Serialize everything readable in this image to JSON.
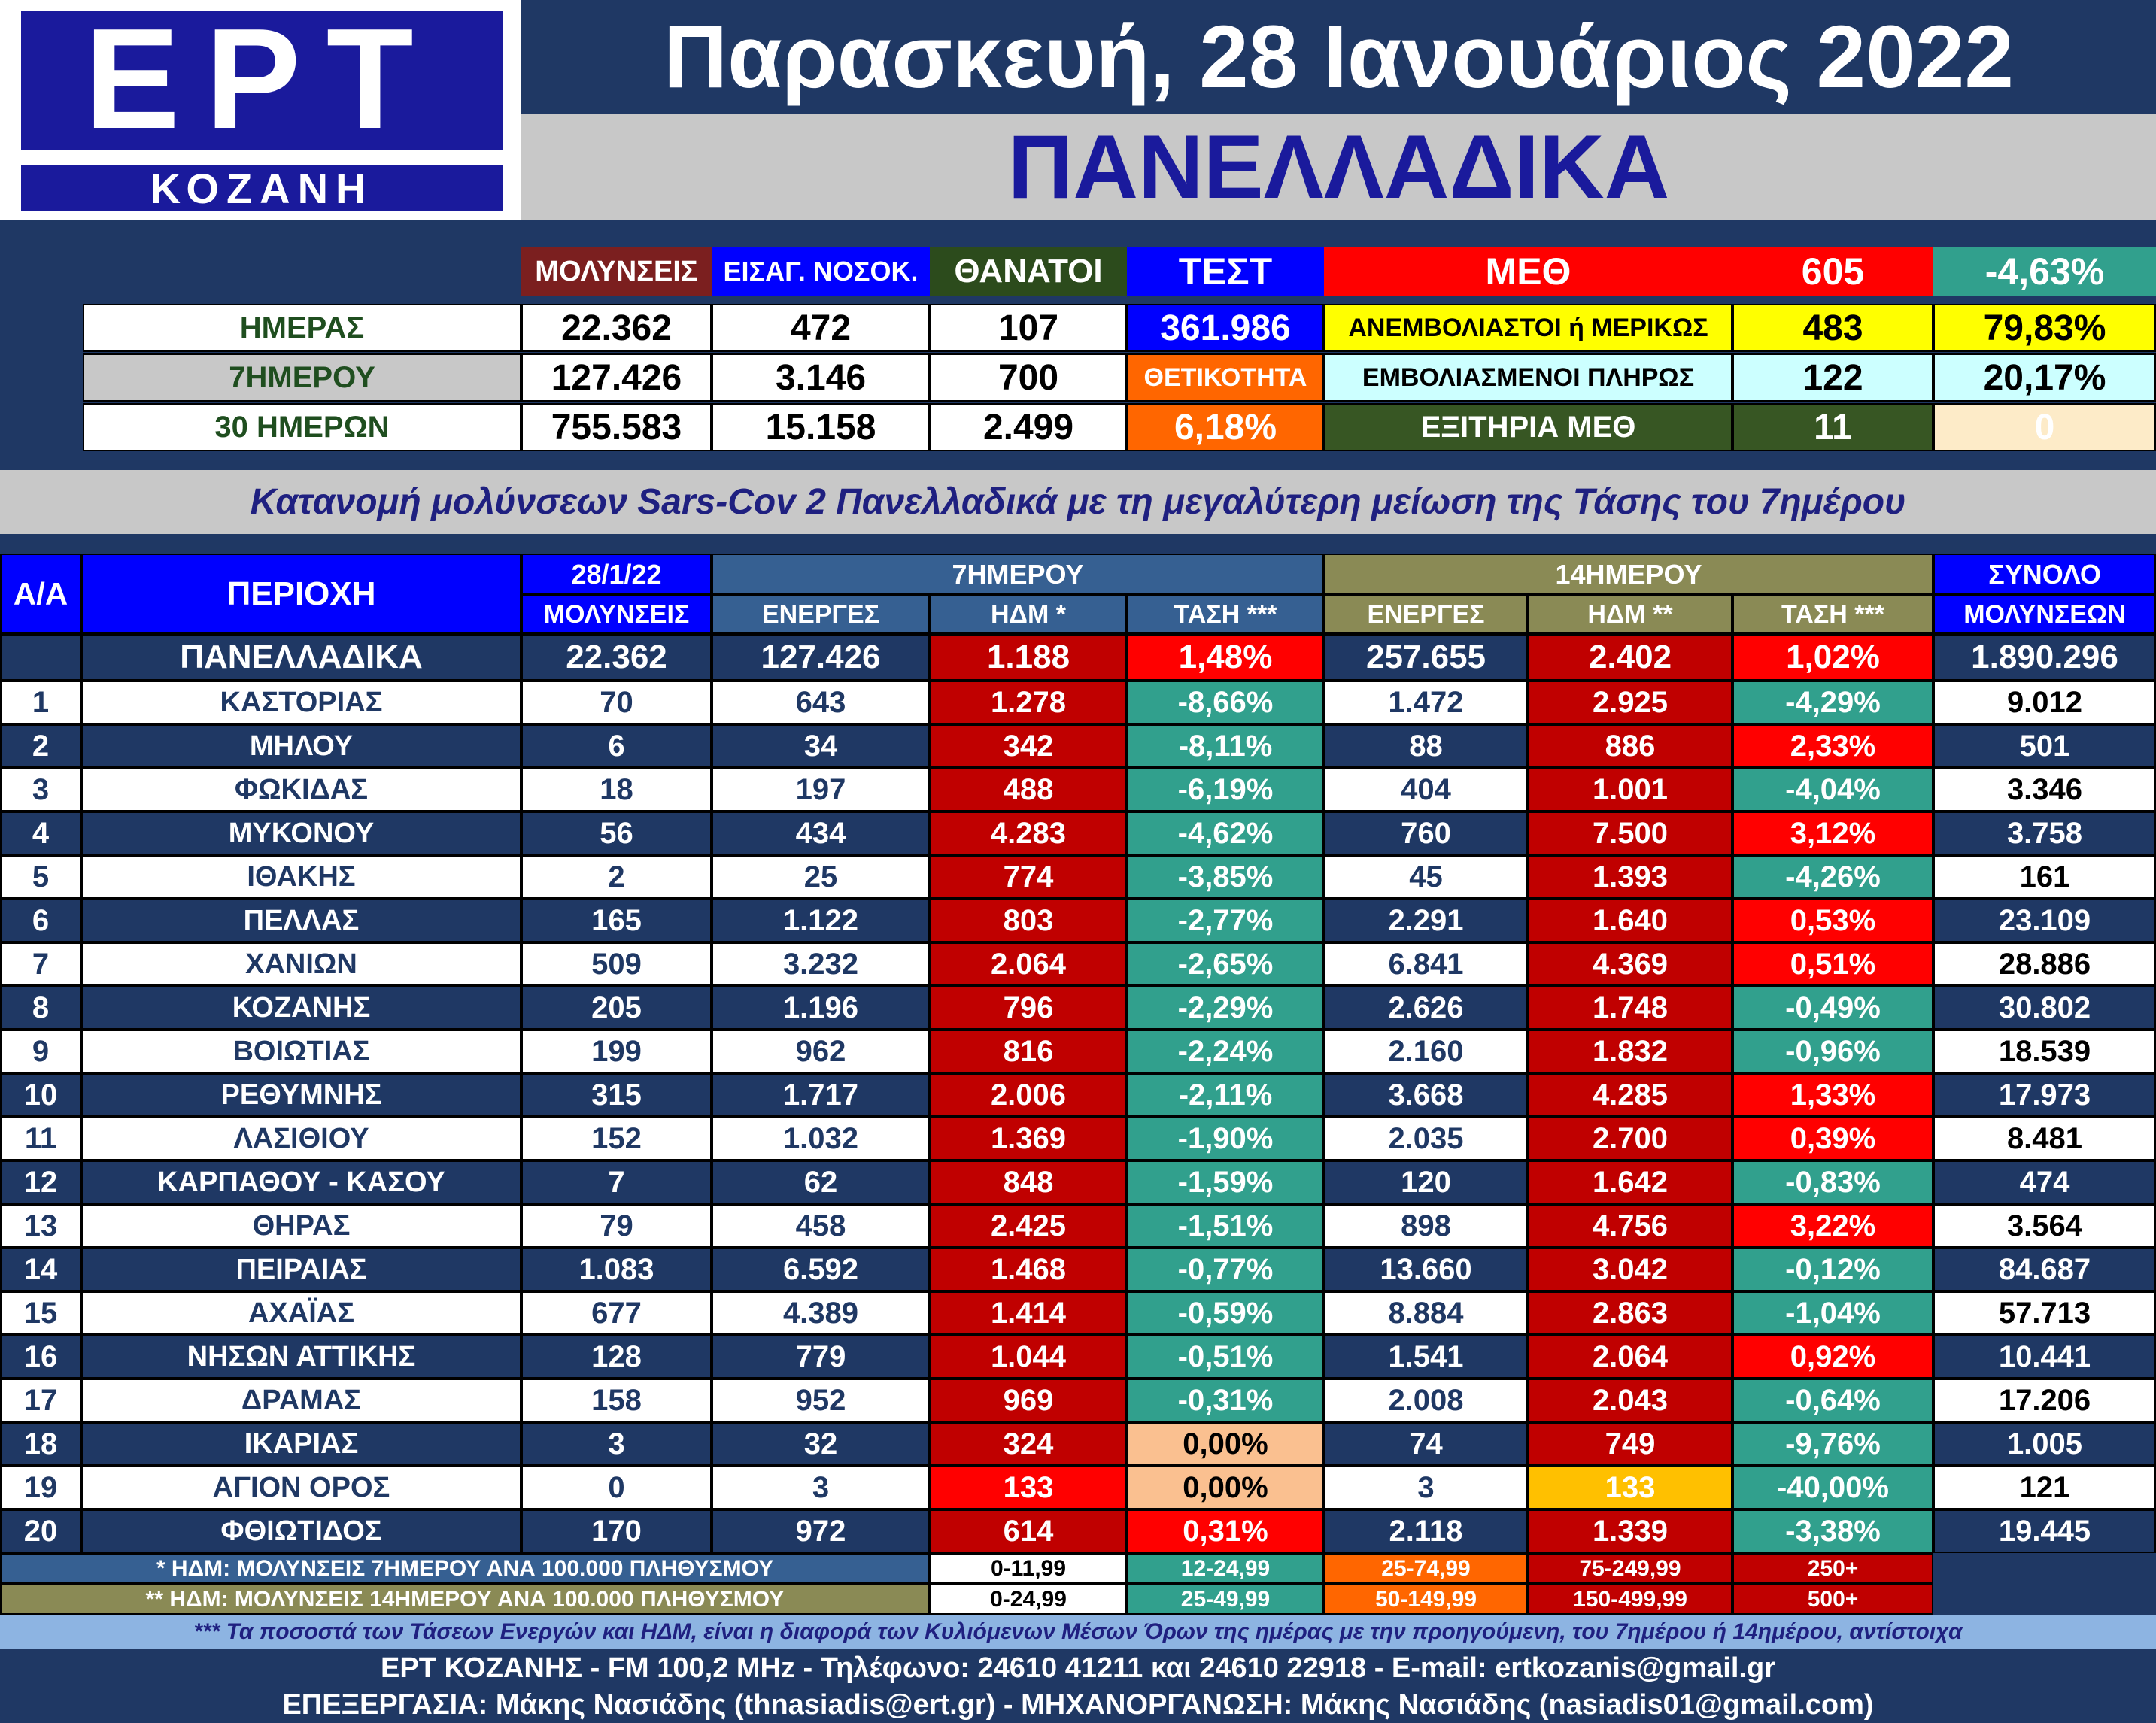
{
  "logo": {
    "main": "ΕΡΤ",
    "sub": "ΚΟΖΑΝΗ"
  },
  "date_title": "Παρασκευή, 28 Ιανουάριος 2022",
  "region_title": "ΠΑΝΕΛΛΑΔΙΚΑ",
  "summary": {
    "headers": {
      "cases": "ΜΟΛΥΝΣΕΙΣ",
      "hospital": "ΕΙΣΑΓ. ΝΟΣΟΚ.",
      "deaths": "ΘΑΝΑΤΟΙ",
      "tests": "ΤΕΣΤ"
    },
    "rows": [
      {
        "label": "ΗΜΕΡΑΣ",
        "cases": "22.362",
        "hospital": "472",
        "deaths": "107"
      },
      {
        "label": "7ΗΜΕΡΟΥ",
        "cases": "127.426",
        "hospital": "3.146",
        "deaths": "700"
      },
      {
        "label": "30 ΗΜΕΡΩΝ",
        "cases": "755.583",
        "hospital": "15.158",
        "deaths": "2.499"
      }
    ],
    "tests_value": "361.986",
    "positivity_label": "ΘΕΤΙΚΟΤΗΤΑ",
    "positivity_value": "6,18%",
    "icu": {
      "label": "ΜΕΘ",
      "total": "605",
      "change": "-4,63%",
      "rows": [
        {
          "label": "ΑΝΕΜΒΟΛΙΑΣΤΟΙ ή ΜΕΡΙΚΩΣ",
          "value": "483",
          "pct": "79,83%"
        },
        {
          "label": "ΕΜΒΟΛΙΑΣΜΕΝΟΙ ΠΛΗΡΩΣ",
          "value": "122",
          "pct": "20,17%"
        },
        {
          "label": "ΕΞΙΤΗΡΙΑ ΜΕΘ",
          "value": "11",
          "pct": "0"
        }
      ]
    }
  },
  "subtitle": "Κατανομή μολύνσεων Sars-Cov 2 Πανελλαδικά με τη μεγαλύτερη μείωση της Τάσης του 7ημέρου",
  "table": {
    "headers": {
      "aa": "Α/Α",
      "area": "ΠΕΡΙΟΧΗ",
      "date": "28/1/22",
      "cases": "ΜΟΛΥΝΣΕΙΣ",
      "group7": "7ΗΜΕΡΟΥ",
      "group14": "14ΗΜΕΡΟΥ",
      "active7": "ΕΝΕΡΓΕΣ",
      "hdm7": "ΗΔΜ *",
      "trend7": "ΤΑΣΗ ***",
      "active14": "ΕΝΕΡΓΕΣ",
      "hdm14": "ΗΔΜ **",
      "trend14": "ΤΑΣΗ ***",
      "total_top": "ΣΥΝΟΛΟ",
      "total_bottom": "ΜΟΛΥΝΣΕΩΝ"
    },
    "national": {
      "area": "ΠΑΝΕΛΛΑΔΙΚΑ",
      "cases": "22.362",
      "active7": "127.426",
      "hdm7": "1.188",
      "trend7": "1,48%",
      "active14": "257.655",
      "hdm14": "2.402",
      "trend14": "1,02%",
      "total": "1.890.296"
    },
    "rows": [
      {
        "aa": "1",
        "area": "ΚΑΣΤΟΡΙΑΣ",
        "cases": "70",
        "active7": "643",
        "hdm7": "1.278",
        "trend7": "-8,66%",
        "active14": "1.472",
        "hdm14": "2.925",
        "trend14": "-4,29%",
        "total": "9.012"
      },
      {
        "aa": "2",
        "area": "ΜΗΛΟΥ",
        "cases": "6",
        "active7": "34",
        "hdm7": "342",
        "trend7": "-8,11%",
        "active14": "88",
        "hdm14": "886",
        "trend14": "2,33%",
        "total": "501"
      },
      {
        "aa": "3",
        "area": "ΦΩΚΙΔΑΣ",
        "cases": "18",
        "active7": "197",
        "hdm7": "488",
        "trend7": "-6,19%",
        "active14": "404",
        "hdm14": "1.001",
        "trend14": "-4,04%",
        "total": "3.346"
      },
      {
        "aa": "4",
        "area": "ΜΥΚΟΝΟΥ",
        "cases": "56",
        "active7": "434",
        "hdm7": "4.283",
        "trend7": "-4,62%",
        "active14": "760",
        "hdm14": "7.500",
        "trend14": "3,12%",
        "total": "3.758"
      },
      {
        "aa": "5",
        "area": "ΙΘΑΚΗΣ",
        "cases": "2",
        "active7": "25",
        "hdm7": "774",
        "trend7": "-3,85%",
        "active14": "45",
        "hdm14": "1.393",
        "trend14": "-4,26%",
        "total": "161"
      },
      {
        "aa": "6",
        "area": "ΠΕΛΛΑΣ",
        "cases": "165",
        "active7": "1.122",
        "hdm7": "803",
        "trend7": "-2,77%",
        "active14": "2.291",
        "hdm14": "1.640",
        "trend14": "0,53%",
        "total": "23.109"
      },
      {
        "aa": "7",
        "area": "ΧΑΝΙΩΝ",
        "cases": "509",
        "active7": "3.232",
        "hdm7": "2.064",
        "trend7": "-2,65%",
        "active14": "6.841",
        "hdm14": "4.369",
        "trend14": "0,51%",
        "total": "28.886"
      },
      {
        "aa": "8",
        "area": "ΚΟΖΑΝΗΣ",
        "cases": "205",
        "active7": "1.196",
        "hdm7": "796",
        "trend7": "-2,29%",
        "active14": "2.626",
        "hdm14": "1.748",
        "trend14": "-0,49%",
        "total": "30.802"
      },
      {
        "aa": "9",
        "area": "ΒΟΙΩΤΙΑΣ",
        "cases": "199",
        "active7": "962",
        "hdm7": "816",
        "trend7": "-2,24%",
        "active14": "2.160",
        "hdm14": "1.832",
        "trend14": "-0,96%",
        "total": "18.539"
      },
      {
        "aa": "10",
        "area": "ΡΕΘΥΜΝΗΣ",
        "cases": "315",
        "active7": "1.717",
        "hdm7": "2.006",
        "trend7": "-2,11%",
        "active14": "3.668",
        "hdm14": "4.285",
        "trend14": "1,33%",
        "total": "17.973"
      },
      {
        "aa": "11",
        "area": "ΛΑΣΙΘΙΟΥ",
        "cases": "152",
        "active7": "1.032",
        "hdm7": "1.369",
        "trend7": "-1,90%",
        "active14": "2.035",
        "hdm14": "2.700",
        "trend14": "0,39%",
        "total": "8.481"
      },
      {
        "aa": "12",
        "area": "ΚΑΡΠΑΘΟΥ - ΚΑΣΟΥ",
        "cases": "7",
        "active7": "62",
        "hdm7": "848",
        "trend7": "-1,59%",
        "active14": "120",
        "hdm14": "1.642",
        "trend14": "-0,83%",
        "total": "474"
      },
      {
        "aa": "13",
        "area": "ΘΗΡΑΣ",
        "cases": "79",
        "active7": "458",
        "hdm7": "2.425",
        "trend7": "-1,51%",
        "active14": "898",
        "hdm14": "4.756",
        "trend14": "3,22%",
        "total": "3.564"
      },
      {
        "aa": "14",
        "area": "ΠΕΙΡΑΙΑΣ",
        "cases": "1.083",
        "active7": "6.592",
        "hdm7": "1.468",
        "trend7": "-0,77%",
        "active14": "13.660",
        "hdm14": "3.042",
        "trend14": "-0,12%",
        "total": "84.687"
      },
      {
        "aa": "15",
        "area": "ΑΧΑΪΑΣ",
        "cases": "677",
        "active7": "4.389",
        "hdm7": "1.414",
        "trend7": "-0,59%",
        "active14": "8.884",
        "hdm14": "2.863",
        "trend14": "-1,04%",
        "total": "57.713"
      },
      {
        "aa": "16",
        "area": "ΝΗΣΩΝ ΑΤΤΙΚΗΣ",
        "cases": "128",
        "active7": "779",
        "hdm7": "1.044",
        "trend7": "-0,51%",
        "active14": "1.541",
        "hdm14": "2.064",
        "trend14": "0,92%",
        "total": "10.441"
      },
      {
        "aa": "17",
        "area": "ΔΡΑΜΑΣ",
        "cases": "158",
        "active7": "952",
        "hdm7": "969",
        "trend7": "-0,31%",
        "active14": "2.008",
        "hdm14": "2.043",
        "trend14": "-0,64%",
        "total": "17.206"
      },
      {
        "aa": "18",
        "area": "ΙΚΑΡΙΑΣ",
        "cases": "3",
        "active7": "32",
        "hdm7": "324",
        "trend7": "0,00%",
        "active14": "74",
        "hdm14": "749",
        "trend14": "-9,76%",
        "total": "1.005"
      },
      {
        "aa": "19",
        "area": "ΑΓΙΟΝ ΟΡΟΣ",
        "cases": "0",
        "active7": "3",
        "hdm7": "133",
        "trend7": "0,00%",
        "active14": "3",
        "hdm14": "133",
        "trend14": "-40,00%",
        "total": "121"
      },
      {
        "aa": "20",
        "area": "ΦΘΙΩΤΙΔΟΣ",
        "cases": "170",
        "active7": "972",
        "hdm7": "614",
        "trend7": "0,31%",
        "active14": "2.118",
        "hdm14": "1.339",
        "trend14": "-3,38%",
        "total": "19.445"
      }
    ]
  },
  "legend": [
    {
      "label": "* ΗΔΜ: ΜΟΛΥΝΣΕΙΣ 7ΗΜΕΡΟΥ ΑΝΑ 100.000 ΠΛΗΘΥΣΜΟΥ",
      "ranges": [
        "0-11,99",
        "12-24,99",
        "25-74,99",
        "75-249,99",
        "250+"
      ]
    },
    {
      "label": "** ΗΔΜ: ΜΟΛΥΝΣΕΙΣ 14ΗΜΕΡΟΥ ΑΝΑ 100.000 ΠΛΗΘΥΣΜΟΥ",
      "ranges": [
        "0-24,99",
        "25-49,99",
        "50-149,99",
        "150-499,99",
        "500+"
      ]
    }
  ],
  "footnote": "*** Τα ποσοστά των Τάσεων Ενεργών και ΗΔΜ, είναι η διαφορά των Κυλιόμενων Μέσων Όρων της ημέρας με την προηγούμενη, του 7ημέρου ή 14ημέρου, αντίστοιχα",
  "footer_line1": "ΕΡΤ ΚΟΖΑΝΗΣ - FM 100,2 MHz - Τηλέφωνο:  24610 41211 και 24610 22918 - E-mail: ertkozanis@gmail.gr",
  "footer_line2": "ΕΠΕΞΕΡΓΑΣΙΑ: Μάκης Νασιάδης (thnasiadis@ert.gr) - ΜΗΧΑΝΟΡΓΑΝΩΣΗ: Μάκης Νασιάδης (nasiadis01@gmail.com)",
  "colors": {
    "navy": "#1f3864",
    "royal_blue": "#0000ff",
    "hdm_red": "#c00000",
    "bright_red": "#ff0000",
    "teal": "#31a08d",
    "peach": "#fac090",
    "orange": "#ff6600",
    "yellow": "#ffff00",
    "light_cyan": "#ccffff",
    "dark_olive": "#375623",
    "maroon": "#7b1f1f",
    "dark_green": "#2c4b1c"
  }
}
